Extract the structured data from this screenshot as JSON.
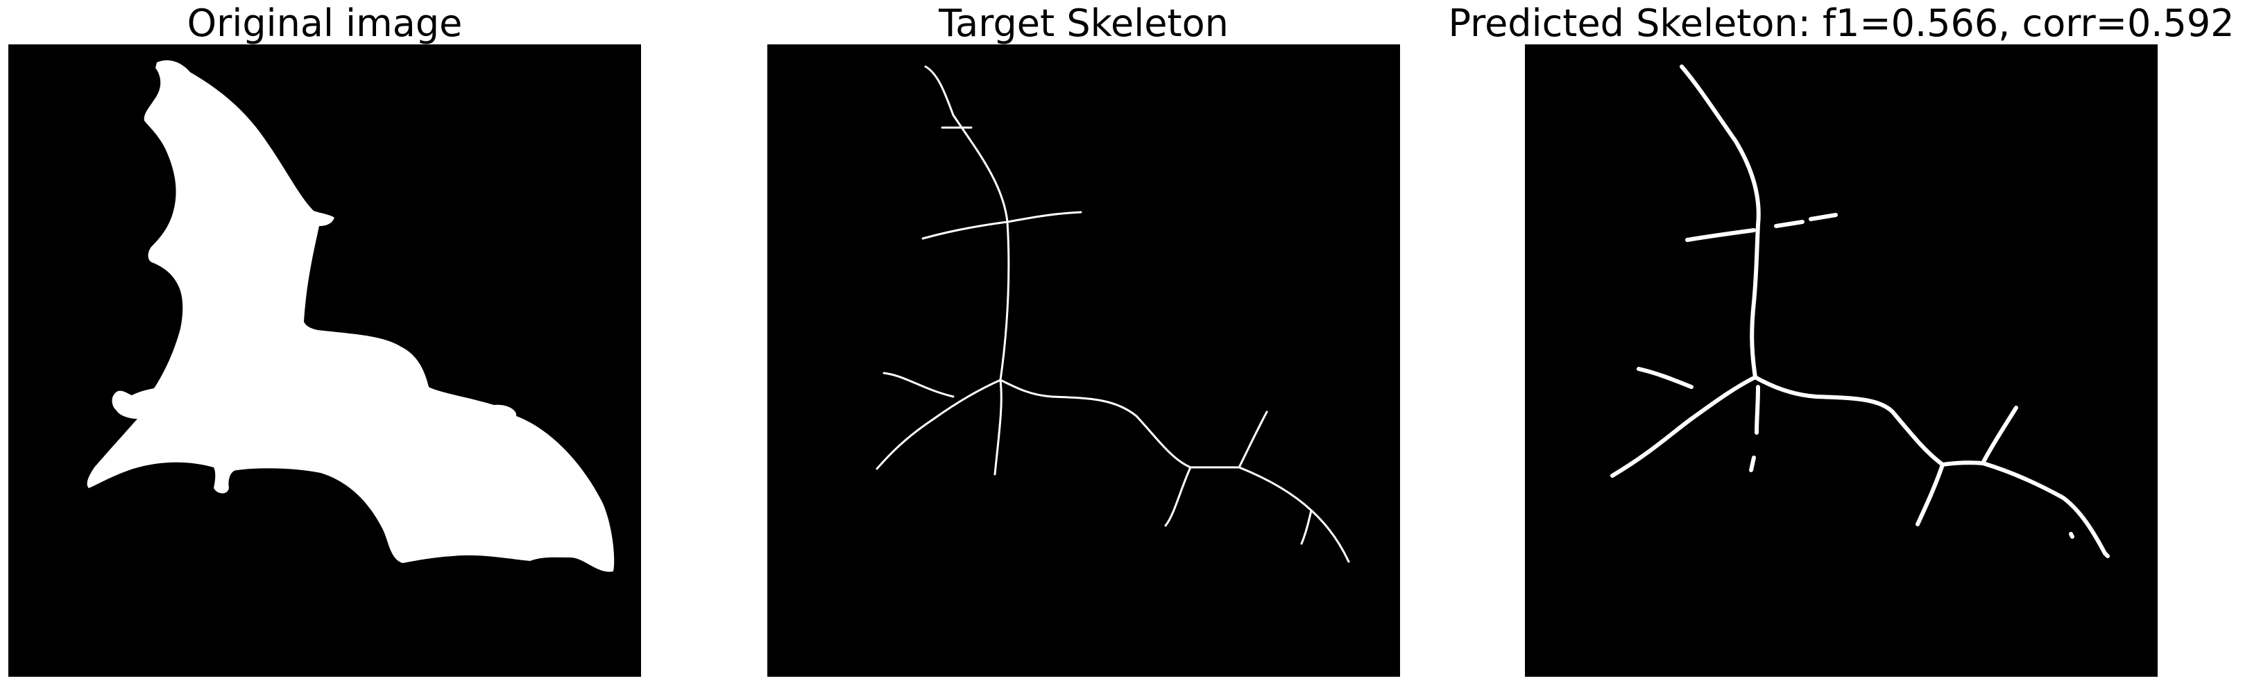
{
  "panels": [
    {
      "title": "Original image"
    },
    {
      "title": "Target Skeleton"
    },
    {
      "title": "Predicted Skeleton: f1=0.566, corr=0.592"
    }
  ],
  "colors": {
    "background": "#000000",
    "foreground": "#ffffff",
    "page": "#ffffff"
  }
}
